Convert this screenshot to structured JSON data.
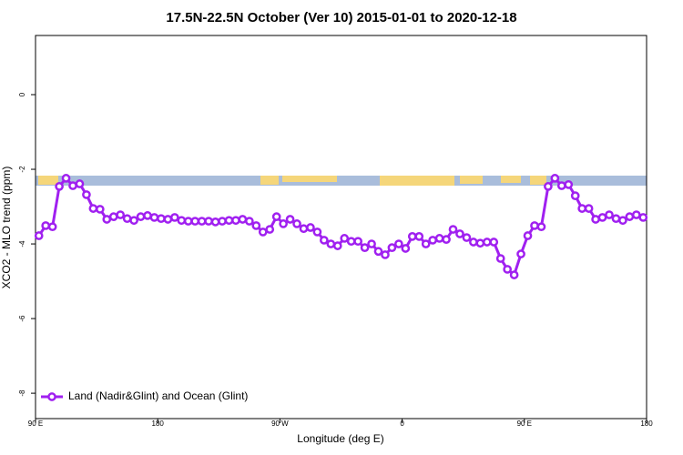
{
  "chart_data": {
    "type": "line",
    "title": "17.5N-22.5N October (Ver 10)   2015-01-01 to 2020-12-18",
    "x_label": "Longitude (deg E)",
    "y_label": "XCO2 - MLO trend (ppm)",
    "xlim": [
      90,
      540
    ],
    "xticks": [
      {
        "value": 90,
        "label": "90 E"
      },
      180,
      {
        "value": 270,
        "label": "90 W"
      },
      {
        "value": 360,
        "label": "0"
      },
      {
        "value": 450,
        "label": "90 E"
      },
      {
        "value": 540,
        "label": "180"
      }
    ],
    "ylim": [
      -8.68,
      1.585
    ],
    "yticks": [
      0,
      -2,
      -4,
      -6,
      -8
    ],
    "legend": "bottom-left",
    "x": [
      92.5,
      97.5,
      102.5,
      107.5,
      112.5,
      117.5,
      122.5,
      127.5,
      132.5,
      137.5,
      142.5,
      147.5,
      152.5,
      157.5,
      162.5,
      167.5,
      172.5,
      177.5,
      182.5,
      187.5,
      192.5,
      197.5,
      202.5,
      207.5,
      212.5,
      217.5,
      222.5,
      227.5,
      232.5,
      237.5,
      242.5,
      247.5,
      252.5,
      257.5,
      262.5,
      267.5,
      272.5,
      277.5,
      282.5,
      287.5,
      292.5,
      297.5,
      302.5,
      307.5,
      312.5,
      317.5,
      322.5,
      327.5,
      332.5,
      337.5,
      342.5,
      347.5,
      352.5,
      357.5,
      362.5,
      367.5,
      372.5,
      377.5,
      382.5,
      387.5,
      392.5,
      397.5,
      402.5,
      407.5,
      412.5,
      417.5,
      422.5,
      427.5,
      432.5,
      437.5,
      442.5,
      447.5,
      452.5,
      457.5,
      462.5,
      467.5,
      472.5,
      477.5,
      482.5,
      487.5,
      492.5,
      497.5,
      502.5,
      507.5,
      512.5,
      517.5,
      522.5,
      527.5,
      532.5,
      537.5
    ],
    "series": [
      {
        "name": "Land (Nadir&Glint) and Ocean (Glint)",
        "color": "#a020f0",
        "values": [
          -3.78,
          -3.51,
          -3.54,
          -2.46,
          -2.24,
          -2.44,
          -2.39,
          -2.68,
          -3.05,
          -3.07,
          -3.34,
          -3.27,
          -3.22,
          -3.32,
          -3.37,
          -3.27,
          -3.24,
          -3.29,
          -3.32,
          -3.34,
          -3.29,
          -3.37,
          -3.39,
          -3.39,
          -3.39,
          -3.39,
          -3.41,
          -3.39,
          -3.37,
          -3.37,
          -3.34,
          -3.39,
          -3.51,
          -3.68,
          -3.61,
          -3.27,
          -3.46,
          -3.34,
          -3.46,
          -3.59,
          -3.56,
          -3.68,
          -3.9,
          -4.0,
          -4.05,
          -3.85,
          -3.93,
          -3.93,
          -4.1,
          -4.0,
          -4.2,
          -4.29,
          -4.1,
          -4.0,
          -4.12,
          -3.8,
          -3.8,
          -4.0,
          -3.9,
          -3.85,
          -3.88,
          -3.61,
          -3.73,
          -3.83,
          -3.95,
          -3.98,
          -3.95,
          -3.95,
          -4.39,
          -4.68,
          -4.83,
          -4.27,
          -3.78,
          -3.51,
          -3.54,
          -2.46,
          -2.24,
          -2.44,
          -2.41,
          -2.71,
          -3.05,
          -3.05,
          -3.34,
          -3.29,
          -3.22,
          -3.32,
          -3.37,
          -3.27,
          -3.22,
          -3.29
        ]
      }
    ]
  }
}
